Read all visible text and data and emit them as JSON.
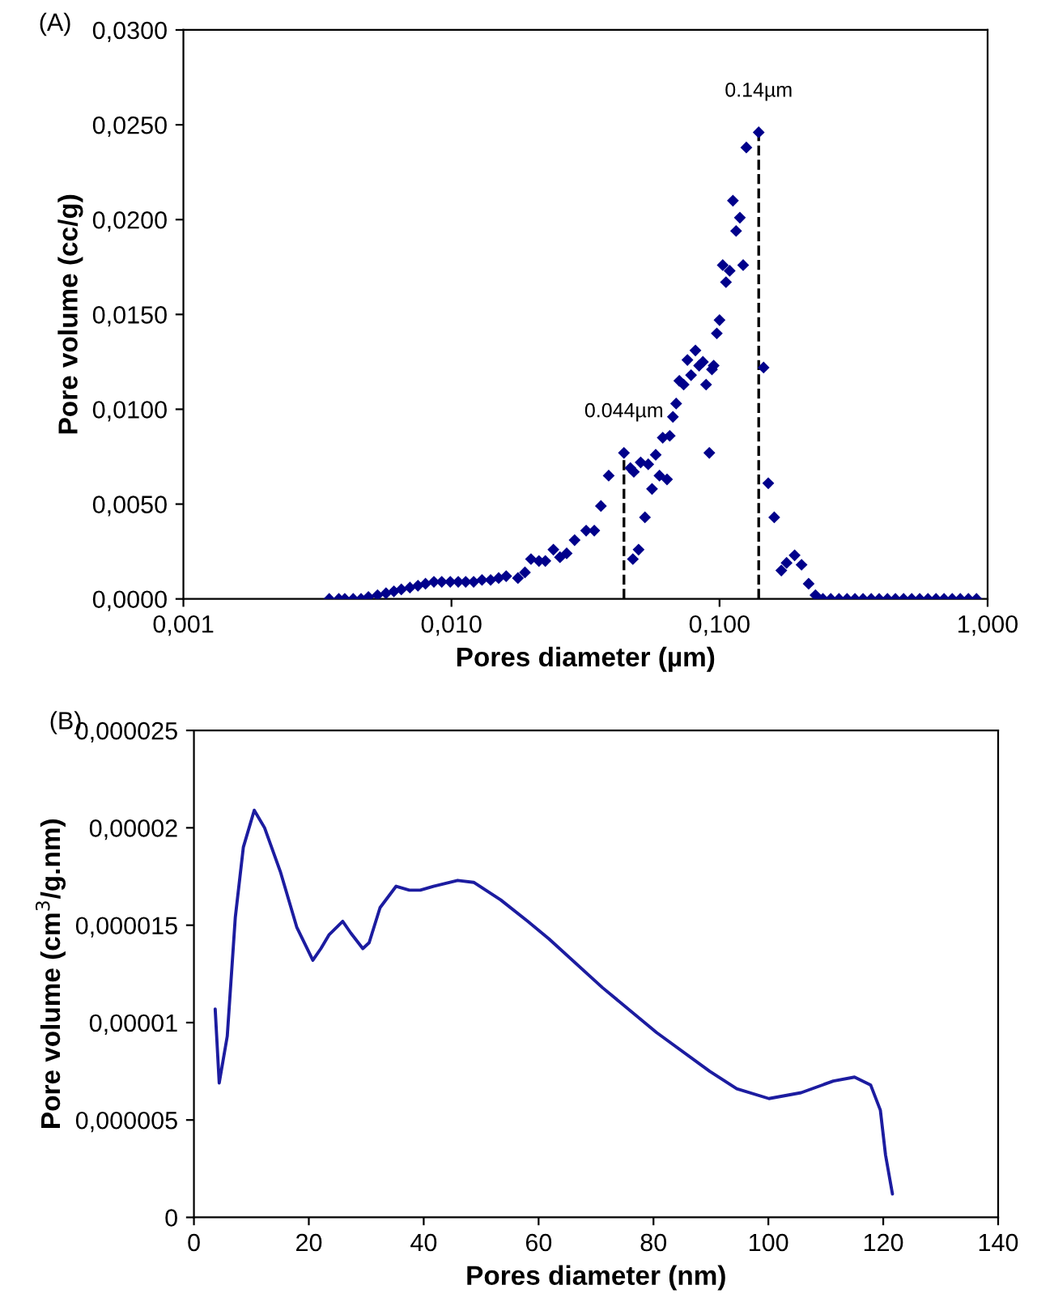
{
  "chart_data": [
    {
      "type": "scatter",
      "title": "(A)",
      "xlabel": "Pores diameter (µm)",
      "ylabel": "Pore volume (cc/g)",
      "log": "x",
      "marker": "diamond",
      "grid": false,
      "xlim": [
        0.001,
        1
      ],
      "xticks": [
        {
          "value": 0.001,
          "label": "0,001"
        },
        {
          "value": 0.01,
          "label": "0,010"
        },
        {
          "value": 0.1,
          "label": "0,100"
        },
        {
          "value": 1,
          "label": "1,000"
        }
      ],
      "ylim": [
        0,
        0.03
      ],
      "yticks": [
        {
          "value": 0,
          "label": "0,0000"
        },
        {
          "value": 0.005,
          "label": "0,0050"
        },
        {
          "value": 0.01,
          "label": "0,0100"
        },
        {
          "value": 0.015,
          "label": "0,0150"
        },
        {
          "value": 0.02,
          "label": "0,0200"
        },
        {
          "value": 0.025,
          "label": "0,0250"
        },
        {
          "value": 0.03,
          "label": "0,0300"
        }
      ],
      "ref_lines": [
        {
          "axis": "x",
          "value": 0.044,
          "label": "0.044µm",
          "line_style": "dashed",
          "color": "#000000"
        },
        {
          "axis": "x",
          "value": 0.14,
          "label": "0.14µm",
          "line_style": "dashed",
          "color": "#000000"
        }
      ],
      "series": [
        {
          "color": "#00008b",
          "x": [
            0.0035,
            0.0038,
            0.004,
            0.0043,
            0.0046,
            0.0049,
            0.0053,
            0.0057,
            0.0061,
            0.0065,
            0.007,
            0.0075,
            0.008,
            0.0086,
            0.0092,
            0.0099,
            0.0106,
            0.0113,
            0.0121,
            0.013,
            0.014,
            0.015,
            0.016,
            0.0177,
            0.0188,
            0.0198,
            0.0212,
            0.0224,
            0.024,
            0.0254,
            0.0269,
            0.0288,
            0.0318,
            0.0341,
            0.0361,
            0.0386,
            0.044,
            0.0465,
            0.0475,
            0.0479,
            0.0499,
            0.0508,
            0.0527,
            0.0542,
            0.056,
            0.0578,
            0.0597,
            0.0637,
            0.0614,
            0.0652,
            0.067,
            0.0689,
            0.0708,
            0.0735,
            0.0759,
            0.0783,
            0.0813,
            0.0839,
            0.0867,
            0.0891,
            0.0916,
            0.0937,
            0.0951,
            0.0977,
            0.1,
            0.1028,
            0.1057,
            0.1091,
            0.1122,
            0.1153,
            0.1191,
            0.1225,
            0.1259,
            0.14,
            0.146,
            0.152,
            0.16,
            0.17,
            0.1779,
            0.1906,
            0.2023,
            0.215,
            0.228,
            0.243,
            0.26,
            0.279,
            0.299,
            0.32,
            0.343,
            0.368,
            0.394,
            0.423,
            0.453,
            0.486,
            0.521,
            0.558,
            0.599,
            0.642,
            0.688,
            0.738,
            0.791,
            0.848,
            0.909
          ],
          "values": [
            0,
            0,
            0,
            0,
            0,
            0.0001,
            0.0002,
            0.0003,
            0.0004,
            0.0005,
            0.0006,
            0.0007,
            0.0008,
            0.0009,
            0.0009,
            0.0009,
            0.0009,
            0.0009,
            0.0009,
            0.001,
            0.001,
            0.0011,
            0.0012,
            0.0011,
            0.0014,
            0.0021,
            0.002,
            0.002,
            0.0026,
            0.0022,
            0.0024,
            0.0031,
            0.0036,
            0.0036,
            0.0049,
            0.0065,
            0.0077,
            0.0069,
            0.0021,
            0.0067,
            0.0026,
            0.0072,
            0.0043,
            0.0071,
            0.0058,
            0.0076,
            0.0065,
            0.0063,
            0.0085,
            0.0086,
            0.0096,
            0.0103,
            0.0115,
            0.0113,
            0.0126,
            0.0118,
            0.0131,
            0.0123,
            0.0125,
            0.0113,
            0.0077,
            0.0121,
            0.0123,
            0.014,
            0.0147,
            0.0176,
            0.0167,
            0.0173,
            0.021,
            0.0194,
            0.0201,
            0.0176,
            0.0238,
            0.0246,
            0.0122,
            0.0061,
            0.0043,
            0.0015,
            0.0019,
            0.0023,
            0.0018,
            0.0008,
            0.0002,
            0,
            0,
            0,
            0,
            0,
            0,
            0,
            0,
            0,
            0,
            0,
            0,
            0,
            0,
            0,
            0,
            0,
            0,
            0,
            0
          ]
        }
      ]
    },
    {
      "type": "line",
      "title": "(B)",
      "xlabel": "Pores diameter (nm)",
      "ylabel": "Pore volume (cm$^{3}$/g.nm)",
      "grid": false,
      "marker": "none",
      "line_style": "solid",
      "xlim": [
        0,
        140
      ],
      "xticks": [
        0,
        20,
        40,
        60,
        80,
        100,
        120,
        140
      ],
      "ylim": [
        0,
        2.5e-05
      ],
      "yticks": [
        {
          "value": 0,
          "label": "0"
        },
        {
          "value": 5e-06,
          "label": "0,000005"
        },
        {
          "value": 1e-05,
          "label": "0,00001"
        },
        {
          "value": 1.5e-05,
          "label": "0,000015"
        },
        {
          "value": 2e-05,
          "label": "0,00002"
        },
        {
          "value": 2.5e-05,
          "label": "0,000025"
        }
      ],
      "series": [
        {
          "color": "#1c1ca0",
          "x": [
            3.7,
            4.4,
            5.8,
            7.2,
            8.6,
            10.5,
            12.3,
            15.1,
            17.9,
            20.7,
            22.1,
            23.5,
            25.9,
            27.3,
            29.4,
            30.5,
            32.4,
            35.2,
            37.5,
            39.4,
            41.7,
            45.9,
            48.7,
            53.4,
            58.1,
            61.8,
            71.1,
            80.5,
            89.8,
            94.5,
            100.1,
            105.7,
            111.3,
            115.0,
            117.8,
            119.5,
            120.4,
            121.6
          ],
          "values": [
            1.07e-05,
            6.9e-06,
            9.3e-06,
            1.54e-05,
            1.9e-05,
            2.09e-05,
            2e-05,
            1.77e-05,
            1.49e-05,
            1.32e-05,
            1.38e-05,
            1.45e-05,
            1.52e-05,
            1.46e-05,
            1.38e-05,
            1.41e-05,
            1.59e-05,
            1.7e-05,
            1.68e-05,
            1.68e-05,
            1.7e-05,
            1.73e-05,
            1.72e-05,
            1.63e-05,
            1.52e-05,
            1.43e-05,
            1.18e-05,
            9.5e-06,
            7.5e-06,
            6.6e-06,
            6.1e-06,
            6.4e-06,
            7e-06,
            7.2e-06,
            6.8e-06,
            5.5e-06,
            3.2e-06,
            1.2e-06
          ]
        }
      ]
    }
  ]
}
